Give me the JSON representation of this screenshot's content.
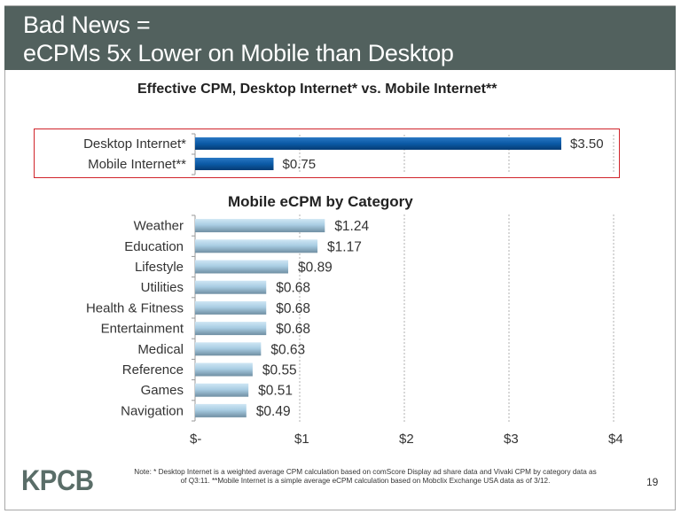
{
  "slide": {
    "title_line1": "Bad News =",
    "title_line2": "eCPMs 5x Lower on Mobile than Desktop",
    "logo": "KPCB",
    "note_line1": "Note: * Desktop Internet is a weighted average CPM calculation based on comScore Display ad share data and Vivaki CPM by category data as",
    "note_line2": "of Q3:11. **Mobile Internet is a simple average eCPM calculation based on Mobclix Exchange USA data as of 3/12.",
    "page_number": "19",
    "colors": {
      "title_bar": "#52615e",
      "desktop_bar": "#0b5aa6",
      "category_bar": "#a9cde3",
      "highlight_border": "#d0242b"
    }
  },
  "chart_data": [
    {
      "type": "bar",
      "orientation": "horizontal",
      "title": "Effective CPM, Desktop Internet* vs. Mobile Internet**",
      "categories": [
        "Desktop Internet*",
        "Mobile Internet**"
      ],
      "values": [
        3.5,
        0.75
      ],
      "data_labels": [
        "$3.50",
        "$0.75"
      ],
      "xlim": [
        0,
        4
      ],
      "grid": "vertical dashed"
    },
    {
      "type": "bar",
      "orientation": "horizontal",
      "title": "Mobile eCPM by Category",
      "categories": [
        "Weather",
        "Education",
        "Lifestyle",
        "Utilities",
        "Health & Fitness",
        "Entertainment",
        "Medical",
        "Reference",
        "Games",
        "Navigation"
      ],
      "values": [
        1.24,
        1.17,
        0.89,
        0.68,
        0.68,
        0.68,
        0.63,
        0.55,
        0.51,
        0.49
      ],
      "data_labels": [
        "$1.24",
        "$1.17",
        "$0.89",
        "$0.68",
        "$0.68",
        "$0.68",
        "$0.63",
        "$0.55",
        "$0.51",
        "$0.49"
      ],
      "xlim": [
        0,
        4
      ],
      "x_ticks": [
        0,
        1,
        2,
        3,
        4
      ],
      "x_tick_labels": [
        "$-",
        "$1",
        "$2",
        "$3",
        "$4"
      ],
      "grid": "vertical dashed"
    }
  ]
}
